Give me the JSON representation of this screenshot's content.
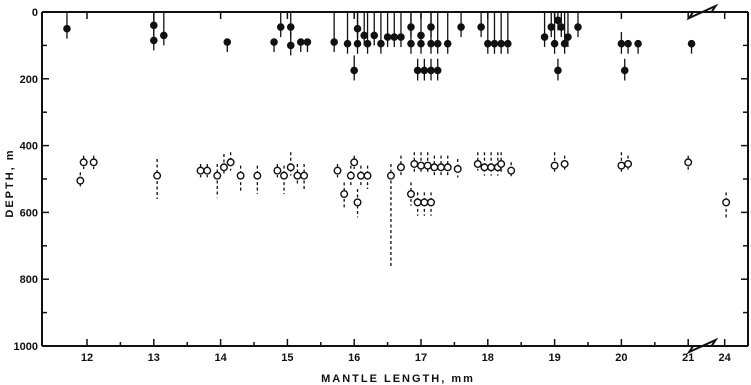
{
  "chart_data": {
    "type": "scatter",
    "title": "",
    "xlabel": "MANTLE LENGTH, mm",
    "ylabel": "DEPTH, m",
    "x_ticks": [
      "12",
      "13",
      "14",
      "15",
      "16",
      "17",
      "18",
      "19",
      "20",
      "21",
      "24"
    ],
    "y_ticks": [
      "0",
      "200",
      "400",
      "600",
      "800",
      "1000"
    ],
    "ylim": [
      0,
      1000
    ],
    "y_inverted": true,
    "x_axis_break": "between 21 and 24",
    "series": [
      {
        "marker": "filled-circle",
        "stem": "solid",
        "points": [
          {
            "x": 11.7,
            "y": 50,
            "top": 0
          },
          {
            "x": 13.0,
            "y": 40,
            "top": 0
          },
          {
            "x": 13.0,
            "y": 85,
            "top": 20
          },
          {
            "x": 13.15,
            "y": 70,
            "top": 0
          },
          {
            "x": 14.1,
            "y": 90,
            "top": 90
          },
          {
            "x": 14.8,
            "y": 90,
            "top": 90
          },
          {
            "x": 14.9,
            "y": 45,
            "top": 0
          },
          {
            "x": 15.05,
            "y": 45,
            "top": 0
          },
          {
            "x": 15.05,
            "y": 100,
            "top": 60
          },
          {
            "x": 15.2,
            "y": 90,
            "top": 90
          },
          {
            "x": 15.3,
            "y": 90,
            "top": 90
          },
          {
            "x": 15.7,
            "y": 90,
            "top": 0
          },
          {
            "x": 15.9,
            "y": 95,
            "top": 0
          },
          {
            "x": 16.0,
            "y": 175,
            "top": 130
          },
          {
            "x": 16.05,
            "y": 95,
            "top": 0
          },
          {
            "x": 16.05,
            "y": 50,
            "top": 0
          },
          {
            "x": 16.2,
            "y": 95,
            "top": 0
          },
          {
            "x": 16.15,
            "y": 70,
            "top": 0
          },
          {
            "x": 16.3,
            "y": 70,
            "top": 0
          },
          {
            "x": 16.4,
            "y": 95,
            "top": 0
          },
          {
            "x": 16.5,
            "y": 75,
            "top": 0
          },
          {
            "x": 16.6,
            "y": 75,
            "top": 0
          },
          {
            "x": 16.7,
            "y": 75,
            "top": 0
          },
          {
            "x": 16.85,
            "y": 45,
            "top": 0
          },
          {
            "x": 16.85,
            "y": 95,
            "top": 0
          },
          {
            "x": 17.0,
            "y": 95,
            "top": 60
          },
          {
            "x": 17.0,
            "y": 70,
            "top": 0
          },
          {
            "x": 17.15,
            "y": 95,
            "top": 0
          },
          {
            "x": 17.15,
            "y": 45,
            "top": 0
          },
          {
            "x": 17.25,
            "y": 95,
            "top": 0
          },
          {
            "x": 17.4,
            "y": 95,
            "top": 0
          },
          {
            "x": 16.95,
            "y": 175,
            "top": 140
          },
          {
            "x": 17.05,
            "y": 175,
            "top": 140
          },
          {
            "x": 17.15,
            "y": 175,
            "top": 140
          },
          {
            "x": 17.25,
            "y": 175,
            "top": 140
          },
          {
            "x": 17.6,
            "y": 45,
            "top": 0
          },
          {
            "x": 17.9,
            "y": 45,
            "top": 0
          },
          {
            "x": 18.0,
            "y": 95,
            "top": 0
          },
          {
            "x": 18.1,
            "y": 95,
            "top": 0
          },
          {
            "x": 18.2,
            "y": 95,
            "top": 0
          },
          {
            "x": 18.3,
            "y": 95,
            "top": 0
          },
          {
            "x": 18.85,
            "y": 75,
            "top": 0
          },
          {
            "x": 18.95,
            "y": 45,
            "top": 0
          },
          {
            "x": 19.05,
            "y": 25,
            "top": 0
          },
          {
            "x": 19.0,
            "y": 95,
            "top": 0
          },
          {
            "x": 19.15,
            "y": 95,
            "top": 0
          },
          {
            "x": 19.2,
            "y": 75,
            "top": 0
          },
          {
            "x": 19.1,
            "y": 45,
            "top": 0
          },
          {
            "x": 19.35,
            "y": 45,
            "top": 0
          },
          {
            "x": 19.05,
            "y": 175,
            "top": 140
          },
          {
            "x": 20.0,
            "y": 95,
            "top": 60
          },
          {
            "x": 20.05,
            "y": 175,
            "top": 140
          },
          {
            "x": 20.1,
            "y": 95,
            "top": 95
          },
          {
            "x": 20.25,
            "y": 95,
            "top": 95
          },
          {
            "x": 21.05,
            "y": 95,
            "top": 95
          }
        ]
      },
      {
        "marker": "open-circle",
        "stem": "dashed",
        "points": [
          {
            "x": 11.9,
            "y": 505,
            "lo": 480,
            "hi": 530
          },
          {
            "x": 11.95,
            "y": 450,
            "lo": 430,
            "hi": 470
          },
          {
            "x": 12.1,
            "y": 450,
            "lo": 430,
            "hi": 470
          },
          {
            "x": 13.05,
            "y": 490,
            "lo": 440,
            "hi": 560
          },
          {
            "x": 13.7,
            "y": 475,
            "lo": 455,
            "hi": 495
          },
          {
            "x": 13.8,
            "y": 475,
            "lo": 455,
            "hi": 495
          },
          {
            "x": 13.95,
            "y": 490,
            "lo": 455,
            "hi": 555
          },
          {
            "x": 14.05,
            "y": 465,
            "lo": 425,
            "hi": 490
          },
          {
            "x": 14.15,
            "y": 450,
            "lo": 420,
            "hi": 475
          },
          {
            "x": 14.3,
            "y": 490,
            "lo": 460,
            "hi": 535
          },
          {
            "x": 14.55,
            "y": 490,
            "lo": 460,
            "hi": 545
          },
          {
            "x": 14.85,
            "y": 475,
            "lo": 455,
            "hi": 495
          },
          {
            "x": 14.95,
            "y": 490,
            "lo": 460,
            "hi": 545
          },
          {
            "x": 15.05,
            "y": 465,
            "lo": 420,
            "hi": 490
          },
          {
            "x": 15.15,
            "y": 490,
            "lo": 455,
            "hi": 515
          },
          {
            "x": 15.25,
            "y": 490,
            "lo": 455,
            "hi": 530
          },
          {
            "x": 15.75,
            "y": 475,
            "lo": 455,
            "hi": 495
          },
          {
            "x": 15.85,
            "y": 545,
            "lo": 510,
            "hi": 590
          },
          {
            "x": 15.95,
            "y": 490,
            "lo": 460,
            "hi": 520
          },
          {
            "x": 16.0,
            "y": 450,
            "lo": 430,
            "hi": 470
          },
          {
            "x": 16.05,
            "y": 570,
            "lo": 530,
            "hi": 615
          },
          {
            "x": 16.1,
            "y": 490,
            "lo": 460,
            "hi": 520
          },
          {
            "x": 16.2,
            "y": 490,
            "lo": 460,
            "hi": 530
          },
          {
            "x": 16.55,
            "y": 490,
            "lo": 455,
            "hi": 765
          },
          {
            "x": 16.7,
            "y": 465,
            "lo": 430,
            "hi": 490
          },
          {
            "x": 16.85,
            "y": 545,
            "lo": 510,
            "hi": 580
          },
          {
            "x": 16.9,
            "y": 455,
            "lo": 420,
            "hi": 480
          },
          {
            "x": 16.95,
            "y": 570,
            "lo": 540,
            "hi": 610
          },
          {
            "x": 17.0,
            "y": 460,
            "lo": 420,
            "hi": 485
          },
          {
            "x": 17.05,
            "y": 570,
            "lo": 540,
            "hi": 610
          },
          {
            "x": 17.1,
            "y": 460,
            "lo": 420,
            "hi": 485
          },
          {
            "x": 17.15,
            "y": 570,
            "lo": 540,
            "hi": 610
          },
          {
            "x": 17.2,
            "y": 465,
            "lo": 430,
            "hi": 490
          },
          {
            "x": 17.3,
            "y": 465,
            "lo": 430,
            "hi": 490
          },
          {
            "x": 17.4,
            "y": 465,
            "lo": 430,
            "hi": 490
          },
          {
            "x": 17.55,
            "y": 470,
            "lo": 440,
            "hi": 495
          },
          {
            "x": 17.85,
            "y": 455,
            "lo": 420,
            "hi": 475
          },
          {
            "x": 17.95,
            "y": 465,
            "lo": 420,
            "hi": 490
          },
          {
            "x": 18.05,
            "y": 465,
            "lo": 420,
            "hi": 490
          },
          {
            "x": 18.15,
            "y": 465,
            "lo": 420,
            "hi": 490
          },
          {
            "x": 18.2,
            "y": 455,
            "lo": 420,
            "hi": 480
          },
          {
            "x": 18.35,
            "y": 475,
            "lo": 450,
            "hi": 495
          },
          {
            "x": 19.0,
            "y": 460,
            "lo": 420,
            "hi": 480
          },
          {
            "x": 19.15,
            "y": 455,
            "lo": 430,
            "hi": 475
          },
          {
            "x": 20.0,
            "y": 460,
            "lo": 420,
            "hi": 485
          },
          {
            "x": 20.1,
            "y": 455,
            "lo": 430,
            "hi": 475
          },
          {
            "x": 21.0,
            "y": 450,
            "lo": 430,
            "hi": 480
          },
          {
            "x": 24.1,
            "y": 570,
            "lo": 540,
            "hi": 620
          }
        ]
      }
    ]
  }
}
